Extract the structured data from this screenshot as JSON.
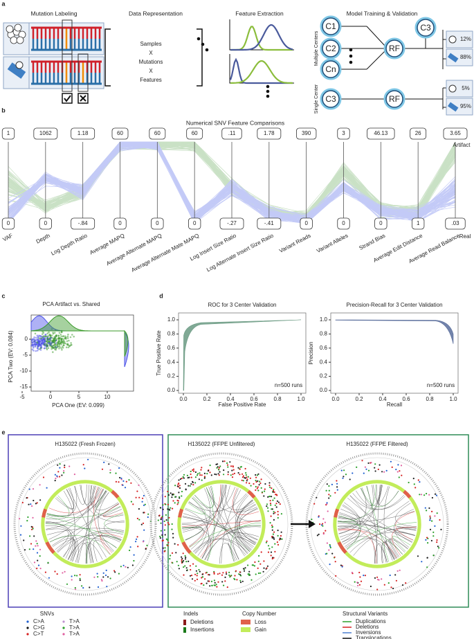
{
  "panel_a": {
    "letter": "a",
    "mutation_labeling": {
      "title": "Mutation Labeling"
    },
    "data_representation": {
      "title": "Data Representation",
      "samples": "Samples",
      "x1": "X",
      "mutations": "Mutations",
      "x2": "X",
      "features": "Features"
    },
    "feature_extraction": {
      "title": "Feature Extraction"
    },
    "model_training": {
      "title": "Model Training & Validation",
      "multiple_centers": "Multiple Centers",
      "single_center": "Single Center",
      "nodes": [
        "C1",
        "C2",
        "Cn"
      ],
      "multi_rf": "RF",
      "test_node": "C3",
      "single_node": "C3",
      "single_rf": "RF",
      "multi_results": [
        "12%",
        "88%"
      ],
      "single_results": [
        "5%",
        "95%"
      ]
    }
  },
  "panel_b": {
    "letter": "b",
    "title": "Numerical SNV Feature Comparisons",
    "artifact": "Artifact",
    "real": "Real",
    "axes": [
      {
        "name": "VAF",
        "max": "1",
        "min": "0"
      },
      {
        "name": "Depth",
        "max": "1062",
        "min": "0"
      },
      {
        "name": "Log Depth Ratio",
        "max": "1.18",
        "min": "-.84"
      },
      {
        "name": "Average MAPQ",
        "max": "60",
        "min": "0"
      },
      {
        "name": "Average Alternate MAPQ",
        "max": "60",
        "min": "0"
      },
      {
        "name": "Average Alternate Mate MAPQ",
        "max": "60",
        "min": "0"
      },
      {
        "name": "Log Insert Size Ratio",
        "max": ".11",
        "min": "-.27"
      },
      {
        "name": "Log Alternate Insert Size Ratio",
        "max": "1.78",
        "min": "-.41"
      },
      {
        "name": "Variant Reads",
        "max": "390",
        "min": "0"
      },
      {
        "name": "Variant Alleles",
        "max": "3",
        "min": "0"
      },
      {
        "name": "Strand Bias",
        "max": "46.13",
        "min": "0"
      },
      {
        "name": "Average Edit Distance",
        "max": "26",
        "min": "1"
      },
      {
        "name": "Average Read Balance",
        "max": "3.65",
        "min": ".03"
      }
    ]
  },
  "panel_c": {
    "letter": "c",
    "title": "PCA Artifact vs. Shared",
    "ylabel": "PCA Two (EV: 0.084)",
    "xlabel": "PCA One (EV: 0.099)",
    "yticks": [
      "0",
      "-5",
      "-10",
      "-15"
    ],
    "xticks": [
      "-5",
      "0",
      "5",
      "10"
    ]
  },
  "panel_d": {
    "letter": "d",
    "roc": {
      "title": "ROC for 3 Center Validation",
      "ylabel": "True Positive Rate",
      "xlabel": "False Positive Rate",
      "note": "n=500 runs",
      "xticks": [
        "0.0",
        "0.2",
        "0.4",
        "0.6",
        "0.8",
        "1.0"
      ],
      "yticks": [
        "0.0",
        "0.2",
        "0.4",
        "0.6",
        "0.8",
        "1.0"
      ]
    },
    "pr": {
      "title": "Precision-Recall for 3 Center Validation",
      "ylabel": "Precision",
      "xlabel": "Recall",
      "note": "n=500 runs",
      "xticks": [
        "0.0",
        "0.2",
        "0.4",
        "0.6",
        "0.8",
        "1.0"
      ],
      "yticks": [
        "0.0",
        "0.2",
        "0.4",
        "0.6",
        "0.8",
        "1.0"
      ]
    }
  },
  "panel_e": {
    "letter": "e",
    "plots": [
      "H135022 (Fresh Frozen)",
      "H135022 (FFPE Unfiltered)",
      "H135022 (FFPE Filtered)"
    ],
    "legend": {
      "snvs": {
        "title": "SNVs",
        "items": [
          "C>A",
          "C>G",
          "C>T",
          "T>A",
          "T>A",
          "T>A"
        ]
      },
      "indels": {
        "title": "Indels",
        "items": [
          "Deletions",
          "Insertions"
        ]
      },
      "copy_number": {
        "title": "Copy Number",
        "items": [
          "Loss",
          "Gain"
        ]
      },
      "structural_variants": {
        "title": "Structural Variants",
        "items": [
          "Duplications",
          "Deletions",
          "Inversions",
          "Translocations"
        ]
      }
    }
  }
}
